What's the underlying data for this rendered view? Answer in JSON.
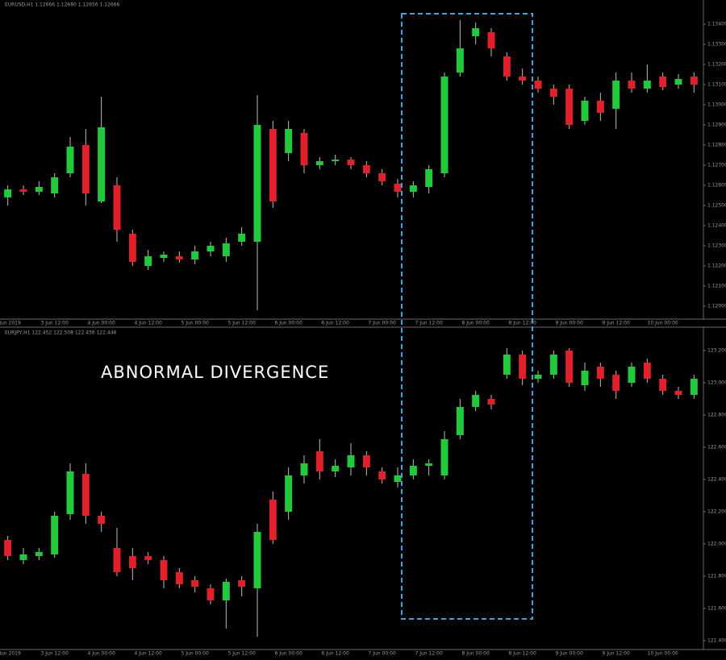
{
  "chart_data": [
    {
      "type": "candlestick",
      "title": "EURUSD,H1 1.12666 1.12680 1.12656 1.12666",
      "categories": [
        "3 Jun 2019",
        null,
        null,
        "3 Jun 12:00",
        null,
        null,
        "4 Jun 00:00",
        null,
        null,
        "4 Jun 12:00",
        null,
        null,
        "5 Jun 00:00",
        null,
        null,
        "5 Jun 12:00",
        null,
        null,
        "6 Jun 00:00",
        null,
        null,
        "6 Jun 12:00",
        null,
        null,
        "7 Jun 00:00",
        null,
        null,
        "7 Jun 12:00",
        null,
        null,
        "8 Jun 00:00",
        null,
        null,
        "8 Jun 12:00",
        null,
        null,
        "9 Jun 00:00",
        null,
        null,
        "9 Jun 12:00",
        null,
        null,
        "10 Jun 00:00",
        null,
        null
      ],
      "up_color": "#22c93a",
      "down_color": "#e0202a",
      "open": [
        1.1254,
        1.1258,
        1.12568,
        1.1256,
        1.1266,
        1.128,
        1.1252,
        1.126,
        1.1236,
        1.122,
        1.1224,
        1.12248,
        1.12232,
        1.12272,
        1.12248,
        1.1232,
        1.1232,
        1.1288,
        1.1276,
        1.1286,
        1.127,
        1.1272,
        1.12728,
        1.127,
        1.1266,
        1.12608,
        1.12568,
        1.12592,
        1.1266,
        1.1316,
        1.1334,
        1.1336,
        1.1324,
        1.1314,
        1.1312,
        1.1308,
        1.1308,
        1.1292,
        1.1302,
        1.1298,
        1.1312,
        1.1308,
        1.1314,
        1.131,
        1.1314
      ],
      "high": [
        1.126,
        1.126,
        1.1262,
        1.1266,
        1.1284,
        1.1288,
        1.1304,
        1.1264,
        1.1238,
        1.1228,
        1.12272,
        1.12272,
        1.123,
        1.1232,
        1.1234,
        1.12392,
        1.13048,
        1.1292,
        1.1292,
        1.1288,
        1.1274,
        1.12752,
        1.1274,
        1.1272,
        1.1268,
        1.12632,
        1.1262,
        1.127,
        1.1316,
        1.1342,
        1.13408,
        1.1338,
        1.1326,
        1.1318,
        1.1314,
        1.131,
        1.131,
        1.1304,
        1.1306,
        1.1316,
        1.1316,
        1.132,
        1.1316,
        1.13152,
        1.1316
      ],
      "low": [
        1.125,
        1.12552,
        1.12552,
        1.1254,
        1.1264,
        1.125,
        1.12512,
        1.1232,
        1.122,
        1.1218,
        1.1222,
        1.12216,
        1.12208,
        1.12248,
        1.1222,
        1.123,
        1.1198,
        1.12488,
        1.1272,
        1.1266,
        1.1268,
        1.127,
        1.1268,
        1.1264,
        1.126,
        1.1254,
        1.1254,
        1.1256,
        1.1264,
        1.1314,
        1.133,
        1.1324,
        1.1312,
        1.131,
        1.1306,
        1.13,
        1.1288,
        1.129,
        1.1292,
        1.1288,
        1.1306,
        1.1306,
        1.13072,
        1.1308,
        1.1306
      ],
      "close": [
        1.1258,
        1.12568,
        1.12592,
        1.1264,
        1.12792,
        1.1256,
        1.12888,
        1.1238,
        1.1222,
        1.12248,
        1.12256,
        1.12232,
        1.12272,
        1.123,
        1.12312,
        1.1236,
        1.129,
        1.1252,
        1.1288,
        1.127,
        1.1272,
        1.12728,
        1.127,
        1.1266,
        1.1262,
        1.12568,
        1.126,
        1.1268,
        1.1314,
        1.1328,
        1.1338,
        1.1328,
        1.1314,
        1.1312,
        1.1308,
        1.1304,
        1.129,
        1.1302,
        1.1296,
        1.1312,
        1.1308,
        1.1312,
        1.13088,
        1.13128,
        1.131
      ],
      "ylim": [
        1.1196,
        1.135
      ],
      "yticks": [
        {
          "value": 1.12,
          "label": "1.12000"
        },
        {
          "value": 1.121,
          "label": "1.12100"
        },
        {
          "value": 1.122,
          "label": "1.12200"
        },
        {
          "value": 1.123,
          "label": "1.12300"
        },
        {
          "value": 1.124,
          "label": "1.12400"
        },
        {
          "value": 1.125,
          "label": "1.12500"
        },
        {
          "value": 1.126,
          "label": "1.12600"
        },
        {
          "value": 1.127,
          "label": "1.12700"
        },
        {
          "value": 1.128,
          "label": "1.12800"
        },
        {
          "value": 1.129,
          "label": "1.12900"
        },
        {
          "value": 1.13,
          "label": "1.13000"
        },
        {
          "value": 1.131,
          "label": "1.13100"
        },
        {
          "value": 1.132,
          "label": "1.13200"
        },
        {
          "value": 1.133,
          "label": "1.13300"
        },
        {
          "value": 1.134,
          "label": "1.13400"
        }
      ]
    },
    {
      "type": "candlestick",
      "title": "EURJPY,H1 122.452 122.508 122.436 122.446",
      "annotation": "ABNORMAL DIVERGENCE",
      "categories": [
        "3 Jun 2019",
        null,
        null,
        "3 Jun 12:00",
        null,
        null,
        "4 Jun 00:00",
        null,
        null,
        "4 Jun 12:00",
        null,
        null,
        "5 Jun 00:00",
        null,
        null,
        "5 Jun 12:00",
        null,
        null,
        "6 Jun 00:00",
        null,
        null,
        "6 Jun 12:00",
        null,
        null,
        "7 Jun 00:00",
        null,
        null,
        "7 Jun 12:00",
        null,
        null,
        "8 Jun 00:00",
        null,
        null,
        "8 Jun 12:00",
        null,
        null,
        "9 Jun 00:00",
        null,
        null,
        "9 Jun 12:00",
        null,
        null,
        "10 Jun 00:00",
        null,
        null
      ],
      "up_color": "#22c93a",
      "down_color": "#e0202a",
      "open": [
        122.025,
        121.9,
        121.925,
        121.935,
        122.185,
        122.435,
        122.175,
        121.975,
        121.925,
        121.925,
        121.9,
        121.825,
        121.775,
        121.725,
        121.65,
        121.775,
        121.725,
        122.275,
        122.2,
        122.425,
        122.575,
        122.45,
        122.475,
        122.55,
        122.45,
        122.385,
        122.425,
        122.485,
        122.425,
        122.675,
        122.85,
        122.9,
        123.05,
        123.175,
        123.025,
        123.05,
        123.2,
        122.985,
        123.1,
        123.05,
        123.0,
        123.125,
        123.025,
        122.95,
        122.925
      ],
      "high": [
        122.05,
        121.975,
        121.975,
        122.2,
        122.5,
        122.5,
        122.2,
        122.1,
        121.975,
        121.95,
        121.925,
        121.85,
        121.8,
        121.75,
        121.785,
        121.8,
        122.125,
        122.325,
        122.475,
        122.55,
        122.65,
        122.525,
        122.625,
        122.575,
        122.475,
        122.475,
        122.525,
        122.525,
        122.7,
        122.9,
        122.95,
        122.925,
        123.215,
        123.2,
        123.075,
        123.2,
        123.215,
        123.125,
        123.125,
        123.075,
        123.125,
        123.15,
        123.05,
        122.975,
        123.05
      ],
      "low": [
        121.9,
        121.875,
        121.9,
        121.915,
        122.15,
        122.125,
        122.075,
        121.8,
        121.775,
        121.875,
        121.725,
        121.725,
        121.7,
        121.625,
        121.475,
        121.675,
        121.425,
        122.0,
        122.15,
        122.375,
        122.4,
        122.415,
        122.425,
        122.425,
        122.375,
        122.35,
        122.4,
        122.425,
        122.4,
        122.65,
        122.825,
        122.835,
        123.025,
        122.985,
        123.0,
        123.025,
        122.975,
        122.95,
        122.975,
        122.9,
        122.975,
        123.0,
        122.925,
        122.9,
        122.9
      ],
      "close": [
        121.925,
        121.935,
        121.95,
        122.175,
        122.45,
        122.175,
        122.125,
        121.825,
        121.85,
        121.9,
        121.775,
        121.75,
        121.735,
        121.65,
        121.765,
        121.735,
        122.075,
        122.025,
        122.425,
        122.5,
        122.45,
        122.485,
        122.55,
        122.475,
        122.4,
        122.425,
        122.485,
        122.5,
        122.65,
        122.85,
        122.925,
        122.865,
        123.175,
        123.025,
        123.05,
        123.175,
        123.0,
        123.075,
        123.025,
        122.95,
        123.1,
        123.025,
        122.95,
        122.925,
        123.025
      ],
      "ylim": [
        121.375,
        123.3
      ],
      "yticks": [
        {
          "value": 121.4,
          "label": "121.400"
        },
        {
          "value": 121.6,
          "label": "121.600"
        },
        {
          "value": 121.8,
          "label": "121.800"
        },
        {
          "value": 122,
          "label": "122.000"
        },
        {
          "value": 122.2,
          "label": "122.200"
        },
        {
          "value": 122.4,
          "label": "122.400"
        },
        {
          "value": 122.6,
          "label": "122.600"
        },
        {
          "value": 122.8,
          "label": "122.800"
        },
        {
          "value": 123,
          "label": "123.000"
        },
        {
          "value": 123.2,
          "label": "123.200"
        }
      ]
    }
  ]
}
